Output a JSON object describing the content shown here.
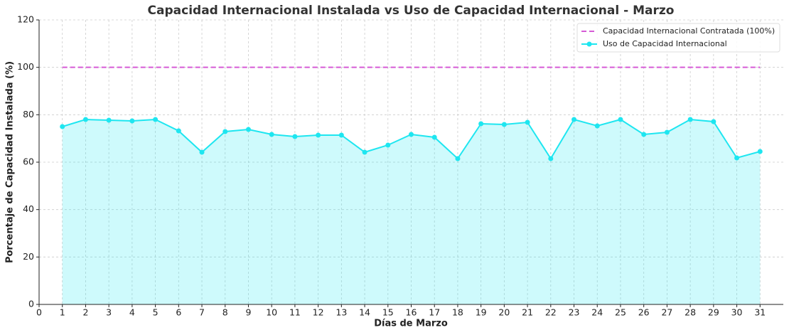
{
  "chart_data": {
    "type": "line",
    "title": "Capacidad Internacional Instalada vs Uso de Capacidad Internacional - Marzo",
    "xlabel": "Días de Marzo",
    "ylabel": "Porcentaje de Capacidad Instalada (%)",
    "x": [
      1,
      2,
      3,
      4,
      5,
      6,
      7,
      8,
      9,
      10,
      11,
      12,
      13,
      14,
      15,
      16,
      17,
      18,
      19,
      20,
      21,
      22,
      23,
      24,
      25,
      26,
      27,
      28,
      29,
      30,
      31
    ],
    "series": [
      {
        "name": "Capacidad Internacional Contratada (100%)",
        "color": "#d65ad6",
        "style": "dashed",
        "marker": false,
        "fill": false,
        "values": [
          100,
          100,
          100,
          100,
          100,
          100,
          100,
          100,
          100,
          100,
          100,
          100,
          100,
          100,
          100,
          100,
          100,
          100,
          100,
          100,
          100,
          100,
          100,
          100,
          100,
          100,
          100,
          100,
          100,
          100,
          100
        ]
      },
      {
        "name": "Uso de Capacidad Internacional",
        "color": "#1ee6f0",
        "style": "solid",
        "marker": true,
        "fill": true,
        "values": [
          75,
          78,
          77.7,
          77.4,
          78,
          73.2,
          64.2,
          72.9,
          73.8,
          71.7,
          70.8,
          71.4,
          71.4,
          64.2,
          67.2,
          71.7,
          70.5,
          61.5,
          76.2,
          75.9,
          76.8,
          61.5,
          78,
          75.3,
          78,
          71.7,
          72.6,
          78,
          77.1,
          61.8,
          64.5
        ]
      }
    ],
    "xlim": [
      0,
      32
    ],
    "ylim": [
      0,
      120
    ],
    "xticks": [
      0,
      1,
      2,
      3,
      4,
      5,
      6,
      7,
      8,
      9,
      10,
      11,
      12,
      13,
      14,
      15,
      16,
      17,
      18,
      19,
      20,
      21,
      22,
      23,
      24,
      25,
      26,
      27,
      28,
      29,
      30,
      31
    ],
    "yticks": [
      0,
      20,
      40,
      60,
      80,
      100,
      120
    ],
    "grid": true,
    "legend": "upper right"
  }
}
